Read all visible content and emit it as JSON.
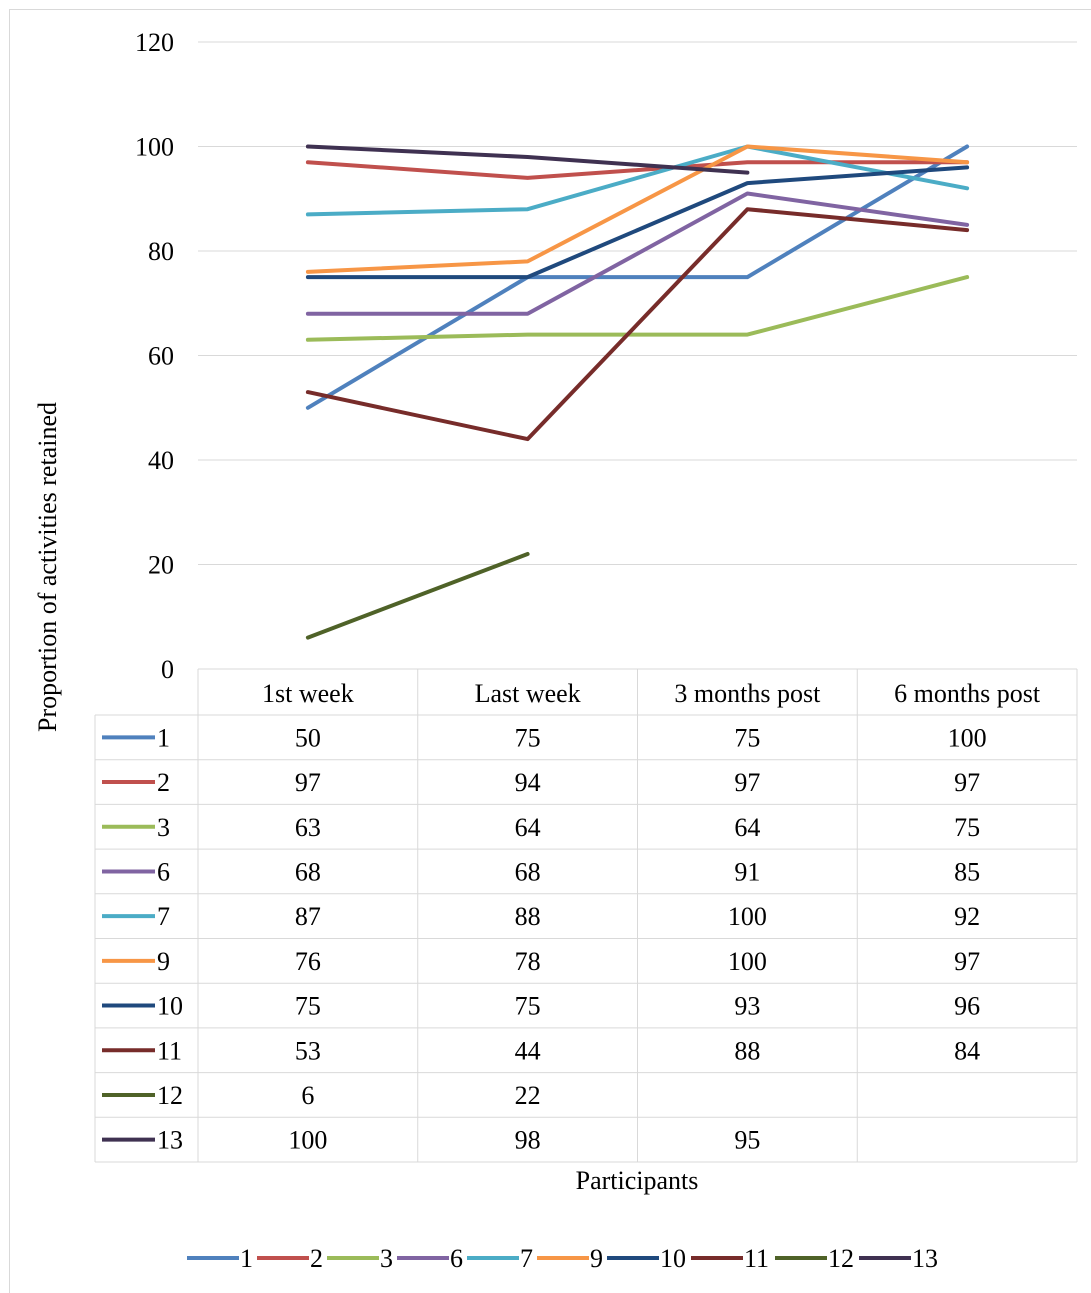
{
  "chart_data": {
    "type": "line",
    "title": "",
    "xlabel": "Participants",
    "ylabel": "Proportion of activities retained",
    "ylim": [
      0,
      120
    ],
    "yticks": [
      0,
      20,
      40,
      60,
      80,
      100,
      120
    ],
    "grid": true,
    "legend_position": "bottom",
    "categories": [
      "1st week",
      "Last week",
      "3 months post",
      "6 months post"
    ],
    "series": [
      {
        "name": "1",
        "color": "#4F81BD",
        "values": [
          50,
          75,
          75,
          100
        ]
      },
      {
        "name": "2",
        "color": "#C0504D",
        "values": [
          97,
          94,
          97,
          97
        ]
      },
      {
        "name": "3",
        "color": "#9BBB59",
        "values": [
          63,
          64,
          64,
          75
        ]
      },
      {
        "name": "6",
        "color": "#8064A2",
        "values": [
          68,
          68,
          91,
          85
        ]
      },
      {
        "name": "7",
        "color": "#4BACC6",
        "values": [
          87,
          88,
          100,
          92
        ]
      },
      {
        "name": "9",
        "color": "#F79646",
        "values": [
          76,
          78,
          100,
          97
        ]
      },
      {
        "name": "10",
        "color": "#1F497D",
        "values": [
          75,
          75,
          93,
          96
        ]
      },
      {
        "name": "11",
        "color": "#772C2A",
        "values": [
          53,
          44,
          88,
          84
        ]
      },
      {
        "name": "12",
        "color": "#4F6228",
        "values": [
          6,
          22,
          null,
          null
        ]
      },
      {
        "name": "13",
        "color": "#3F3151",
        "values": [
          100,
          98,
          95,
          null
        ]
      }
    ]
  }
}
